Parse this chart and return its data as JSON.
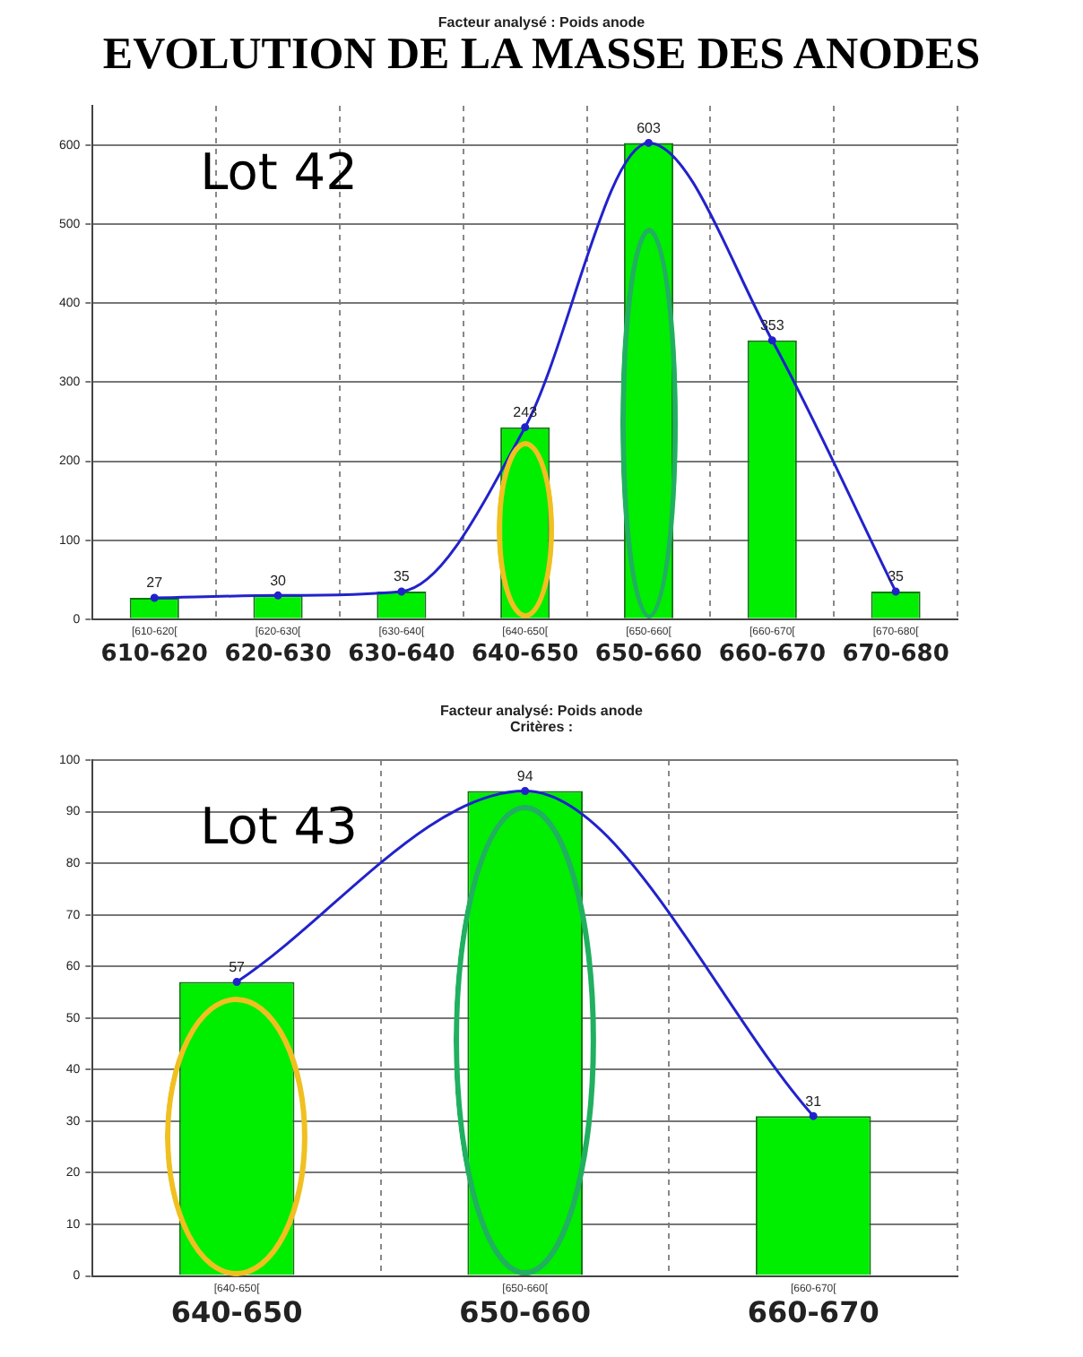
{
  "chart_data": [
    {
      "type": "bar",
      "title": "EVOLUTION DE LA MASSE DES ANODES",
      "subtitle": "Facteur analysé : Poids anode",
      "categories": [
        "610-620",
        "620-630",
        "630-640",
        "640-650",
        "650-660",
        "660-670",
        "670-680"
      ],
      "series": [
        {
          "color": "#00ee00",
          "values": [
            27,
            30,
            35,
            243,
            603,
            353,
            35
          ],
          "value_labels": [
            "27",
            "30",
            "35",
            "243",
            "603",
            "353",
            "35"
          ]
        },
        {
          "type": "line",
          "color": "#2222cc",
          "values": [
            27,
            30,
            35,
            243,
            603,
            353,
            35
          ]
        }
      ],
      "ylim": [
        0,
        650
      ],
      "yticks": [
        0,
        100,
        200,
        300,
        400,
        500,
        600
      ],
      "grid": true,
      "legend": false,
      "marker": "circle",
      "annotations": [
        "Lot 42",
        "[610-620[",
        "[620-630[",
        "[630-640[",
        "[640-650[",
        "[650-660[",
        "[660-670[",
        "[670-680["
      ]
    },
    {
      "type": "bar",
      "title": "Facteur analysé: Poids anode",
      "subtitle": "Critères :",
      "categories": [
        "640-650",
        "650-660",
        "660-670"
      ],
      "series": [
        {
          "color": "#00ee00",
          "values": [
            57,
            94,
            31
          ],
          "value_labels": [
            "57",
            "94",
            "31"
          ]
        },
        {
          "type": "line",
          "color": "#2222cc",
          "values": [
            57,
            94,
            31
          ]
        }
      ],
      "ylim": [
        0,
        100
      ],
      "yticks": [
        0,
        10,
        20,
        30,
        40,
        50,
        60,
        70,
        80,
        90,
        100
      ],
      "grid": true,
      "legend": false,
      "marker": "circle",
      "annotations": [
        "Lot 43",
        "[640-650[",
        "[650-660[",
        "[660-670["
      ]
    }
  ]
}
